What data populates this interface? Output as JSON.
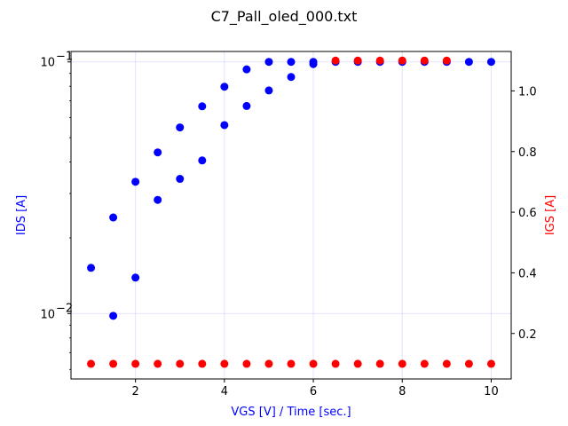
{
  "chart_data": {
    "type": "scatter",
    "title": "C7_Pall_oled_000.txt",
    "xlabel": "VGS [V] / Time [sec.]",
    "ylabel_left": "IDS [A]",
    "ylabel_right": "IGS [A]",
    "colors": {
      "left": "#0000ff",
      "right": "#ff0000"
    },
    "grid": true,
    "xlim": [
      0.55,
      10.45
    ],
    "ylim_left": [
      0.0055,
      0.11
    ],
    "yscale_left": "log",
    "ylim_right": [
      0.05,
      1.13
    ],
    "yscale_right": "linear",
    "x_ticks": [
      {
        "value": 2,
        "label": "2"
      },
      {
        "value": 4,
        "label": "4"
      },
      {
        "value": 6,
        "label": "6"
      },
      {
        "value": 8,
        "label": "8"
      },
      {
        "value": 10,
        "label": "10"
      }
    ],
    "y_left_ticks": [
      {
        "value": 0.01,
        "base": "10",
        "exp": "−2"
      },
      {
        "value": 0.1,
        "base": "10",
        "exp": "−1"
      }
    ],
    "y_right_ticks": [
      {
        "value": 0.2,
        "label": "0.2"
      },
      {
        "value": 0.4,
        "label": "0.4"
      },
      {
        "value": 0.6,
        "label": "0.6"
      },
      {
        "value": 0.8,
        "label": "0.8"
      },
      {
        "value": 1.0,
        "label": "1.0"
      }
    ],
    "series": [
      {
        "axis": "left",
        "x": [
          1,
          1.5,
          2,
          2.5,
          3,
          3.5,
          4,
          4.5,
          5,
          5.5,
          6,
          1.5,
          2,
          2.5,
          3,
          3.5,
          4,
          4.5,
          5,
          5.5,
          6,
          6.5,
          7,
          7.5,
          8,
          8.5,
          9,
          9.5,
          10
        ],
        "y": [
          0.0152,
          0.0241,
          0.0334,
          0.0437,
          0.0549,
          0.0666,
          0.0797,
          0.0934,
          0.1,
          0.1,
          0.1,
          0.0098,
          0.0139,
          0.0283,
          0.0343,
          0.0406,
          0.0561,
          0.0668,
          0.077,
          0.0871,
          0.098,
          0.1,
          0.1,
          0.1,
          0.1,
          0.1,
          0.1,
          0.1,
          0.1
        ]
      },
      {
        "axis": "right",
        "x": [
          1,
          1.5,
          2,
          2.5,
          3,
          3.5,
          4,
          4.5,
          5,
          5.5,
          6,
          6.5,
          7,
          7.5,
          8,
          8.5,
          9,
          9.5,
          10,
          6.5,
          7,
          7.5,
          8,
          8.5,
          9
        ],
        "y": [
          0.1,
          0.1,
          0.1,
          0.1,
          0.1,
          0.1,
          0.1,
          0.1,
          0.1,
          0.1,
          0.1,
          0.1,
          0.1,
          0.1,
          0.1,
          0.1,
          0.1,
          0.1,
          0.1,
          1.1,
          1.1,
          1.1,
          1.1,
          1.1,
          1.1
        ]
      }
    ]
  }
}
